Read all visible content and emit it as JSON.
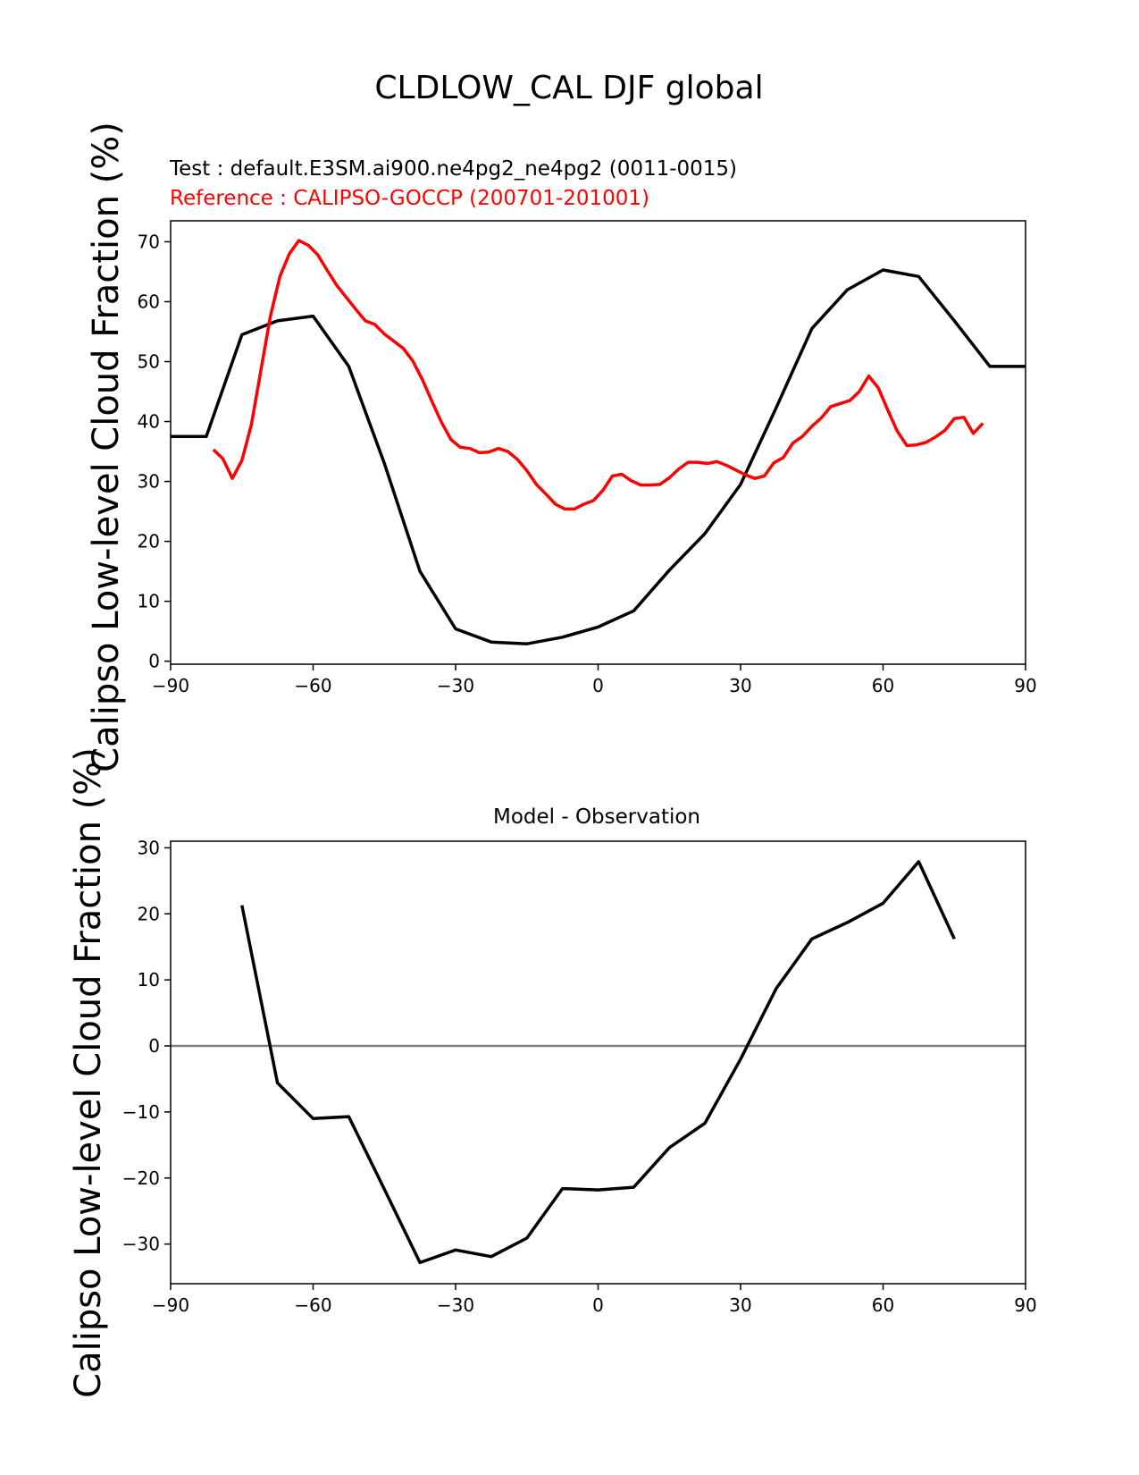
{
  "figure": {
    "title": "CLDLOW_CAL DJF global"
  },
  "chart_data": [
    {
      "type": "line",
      "title": "",
      "annotations": {
        "test_label": "Test : default.E3SM.ai900.ne4pg2_ne4pg2 (0011-0015)",
        "reference_label": "Reference : CALIPSO-GOCCP (200701-201001)"
      },
      "xlabel": "",
      "ylabel": "Calipso Low-level Cloud Fraction (%)",
      "xlim": [
        -90,
        90
      ],
      "ylim": [
        -0.5,
        73.5
      ],
      "xticks": [
        -90,
        -60,
        -30,
        0,
        30,
        60,
        90
      ],
      "xtick_labels": [
        "−90",
        "−60",
        "−30",
        "0",
        "30",
        "60",
        "90"
      ],
      "yticks": [
        0,
        10,
        20,
        30,
        40,
        50,
        60,
        70
      ],
      "ytick_labels": [
        "0",
        "10",
        "20",
        "30",
        "40",
        "50",
        "60",
        "70"
      ],
      "grid": false,
      "series": [
        {
          "color": "#000000",
          "x": [
            -90,
            -82.5,
            -75,
            -67.5,
            -60,
            -52.5,
            -45,
            -37.5,
            -30,
            -22.5,
            -15,
            -7.5,
            0,
            7.5,
            15,
            22.5,
            30,
            37.5,
            45,
            52.5,
            60,
            67.5,
            75,
            82.5,
            90
          ],
          "y": [
            37.5,
            37.5,
            54.5,
            56.8,
            57.6,
            49.2,
            33.0,
            15.0,
            5.4,
            3.2,
            2.9,
            4.0,
            5.7,
            8.4,
            15.2,
            21.3,
            29.5,
            42.3,
            55.5,
            62.0,
            65.3,
            64.2,
            56.8,
            49.2,
            49.2
          ]
        },
        {
          "color": "#ff0000",
          "x": [
            -81,
            -79,
            -77,
            -75,
            -73,
            -71,
            -69,
            -67,
            -65,
            -63,
            -61,
            -59,
            -57,
            -55,
            -53,
            -51,
            -49,
            -47,
            -45,
            -43,
            -41,
            -39,
            -37,
            -35,
            -33,
            -31,
            -29,
            -27,
            -25,
            -23,
            -21,
            -19,
            -17,
            -15,
            -13,
            -11,
            -9,
            -7,
            -5,
            -3,
            -1,
            1,
            3,
            5,
            7,
            9,
            11,
            13,
            15,
            17,
            19,
            21,
            23,
            25,
            27,
            29,
            31,
            33,
            35,
            37,
            39,
            41,
            43,
            45,
            47,
            49,
            51,
            53,
            55,
            57,
            59,
            61,
            63,
            65,
            67,
            69,
            71,
            73,
            75,
            77,
            79,
            81
          ],
          "y": [
            35.3,
            33.8,
            30.5,
            33.5,
            39.5,
            48.5,
            57.5,
            64.2,
            68.0,
            70.2,
            69.4,
            67.8,
            65.2,
            62.7,
            60.7,
            58.7,
            56.8,
            56.2,
            54.6,
            53.4,
            52.2,
            50.1,
            47.0,
            43.4,
            39.9,
            37.0,
            35.7,
            35.5,
            34.8,
            34.9,
            35.5,
            35.0,
            33.7,
            31.8,
            29.5,
            27.9,
            26.2,
            25.4,
            25.4,
            26.2,
            26.8,
            28.5,
            30.9,
            31.2,
            30.1,
            29.4,
            29.4,
            29.5,
            30.6,
            32.1,
            33.2,
            33.2,
            33.0,
            33.3,
            32.7,
            31.9,
            31.1,
            30.5,
            30.9,
            33.1,
            34.0,
            36.4,
            37.5,
            39.2,
            40.6,
            42.5,
            43.0,
            43.5,
            45.0,
            47.6,
            45.6,
            41.9,
            38.4,
            36.0,
            36.1,
            36.5,
            37.4,
            38.5,
            40.5,
            40.7,
            38.0,
            39.7
          ]
        }
      ]
    },
    {
      "type": "line",
      "title": "Model - Observation",
      "xlabel": "",
      "ylabel": "Calipso Low-level Cloud Fraction (%)",
      "xlim": [
        -90,
        90
      ],
      "ylim": [
        -36,
        31
      ],
      "xticks": [
        -90,
        -60,
        -30,
        0,
        30,
        60,
        90
      ],
      "xtick_labels": [
        "−90",
        "−60",
        "−30",
        "0",
        "30",
        "60",
        "90"
      ],
      "yticks": [
        -30,
        -20,
        -10,
        0,
        10,
        20,
        30
      ],
      "ytick_labels": [
        "−30",
        "−20",
        "−10",
        "0",
        "10",
        "20",
        "30"
      ],
      "grid": false,
      "zero_line_color": "#808080",
      "series": [
        {
          "color": "#000000",
          "x": [
            -75,
            -67.5,
            -60,
            -52.5,
            -45,
            -37.5,
            -30,
            -22.5,
            -15,
            -7.5,
            0,
            7.5,
            15,
            22.5,
            30,
            37.5,
            45,
            52.5,
            60,
            67.5,
            75
          ],
          "y": [
            21.3,
            -5.6,
            -11.0,
            -10.7,
            -21.7,
            -32.8,
            -30.9,
            -31.9,
            -29.1,
            -21.6,
            -21.8,
            -21.4,
            -15.4,
            -11.7,
            -2.0,
            8.7,
            16.2,
            18.7,
            21.6,
            27.9,
            16.2
          ]
        }
      ]
    }
  ]
}
